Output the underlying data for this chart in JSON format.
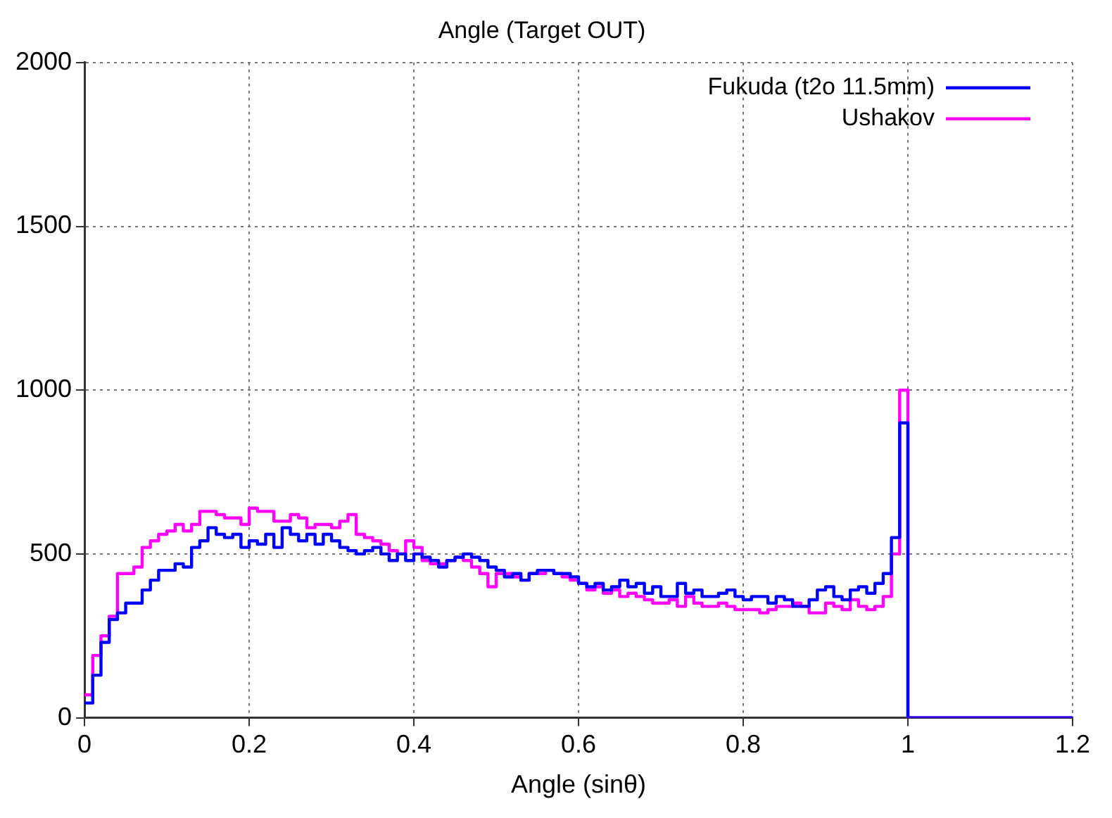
{
  "chart_data": {
    "type": "step",
    "title": "Angle (Target OUT)",
    "xlabel": "Angle (sinθ)",
    "x": [
      0,
      0.01,
      0.02,
      0.03,
      0.04,
      0.05,
      0.06,
      0.07,
      0.08,
      0.09,
      0.1,
      0.11,
      0.12,
      0.13,
      0.14,
      0.15,
      0.16,
      0.17,
      0.18,
      0.19,
      0.2,
      0.21,
      0.22,
      0.23,
      0.24,
      0.25,
      0.26,
      0.27,
      0.28,
      0.29,
      0.3,
      0.31,
      0.32,
      0.33,
      0.34,
      0.35,
      0.36,
      0.37,
      0.38,
      0.39,
      0.4,
      0.41,
      0.42,
      0.43,
      0.44,
      0.45,
      0.46,
      0.47,
      0.48,
      0.49,
      0.5,
      0.51,
      0.52,
      0.53,
      0.54,
      0.55,
      0.56,
      0.57,
      0.58,
      0.59,
      0.6,
      0.61,
      0.62,
      0.63,
      0.64,
      0.65,
      0.66,
      0.67,
      0.68,
      0.69,
      0.7,
      0.71,
      0.72,
      0.73,
      0.74,
      0.75,
      0.76,
      0.77,
      0.78,
      0.79,
      0.8,
      0.81,
      0.82,
      0.83,
      0.84,
      0.85,
      0.86,
      0.87,
      0.88,
      0.89,
      0.9,
      0.91,
      0.92,
      0.93,
      0.94,
      0.95,
      0.96,
      0.97,
      0.98,
      0.99,
      1.0,
      1.2
    ],
    "series": [
      {
        "name": "Fukuda (t2o 11.5mm)",
        "color": "#0000ff",
        "values": [
          45,
          130,
          230,
          300,
          320,
          350,
          350,
          390,
          420,
          450,
          450,
          470,
          460,
          520,
          540,
          580,
          560,
          550,
          560,
          520,
          540,
          530,
          560,
          520,
          580,
          560,
          540,
          560,
          530,
          560,
          540,
          520,
          510,
          500,
          510,
          520,
          500,
          480,
          500,
          480,
          500,
          490,
          480,
          460,
          480,
          490,
          500,
          490,
          480,
          460,
          450,
          430,
          440,
          420,
          440,
          450,
          450,
          440,
          440,
          430,
          410,
          400,
          410,
          390,
          400,
          420,
          400,
          410,
          380,
          400,
          370,
          370,
          410,
          380,
          390,
          370,
          370,
          380,
          390,
          370,
          360,
          370,
          370,
          350,
          370,
          360,
          340,
          340,
          360,
          390,
          400,
          370,
          360,
          390,
          400,
          380,
          410,
          440,
          550,
          900,
          0,
          0
        ]
      },
      {
        "name": "Ushakov",
        "color": "#ff00ff",
        "values": [
          70,
          190,
          250,
          310,
          440,
          440,
          460,
          520,
          540,
          560,
          570,
          590,
          570,
          590,
          630,
          630,
          620,
          610,
          610,
          590,
          640,
          630,
          630,
          600,
          600,
          620,
          610,
          580,
          590,
          590,
          580,
          600,
          620,
          560,
          550,
          540,
          530,
          510,
          500,
          540,
          520,
          480,
          470,
          470,
          480,
          490,
          480,
          460,
          440,
          400,
          440,
          440,
          430,
          420,
          440,
          440,
          450,
          440,
          430,
          420,
          410,
          390,
          400,
          380,
          390,
          370,
          380,
          370,
          360,
          350,
          350,
          360,
          340,
          370,
          350,
          340,
          340,
          350,
          340,
          330,
          330,
          330,
          320,
          330,
          340,
          340,
          350,
          340,
          320,
          320,
          350,
          340,
          330,
          360,
          340,
          330,
          340,
          370,
          500,
          1000,
          0,
          0
        ]
      }
    ],
    "xlim": [
      0,
      1.2
    ],
    "xticks": [
      0,
      0.2,
      0.4,
      0.6,
      0.8,
      1,
      1.2
    ],
    "ylim": [
      0,
      2000
    ],
    "yticks": [
      0,
      500,
      1000,
      1500,
      2000
    ],
    "grid": true,
    "legend": "top right"
  }
}
